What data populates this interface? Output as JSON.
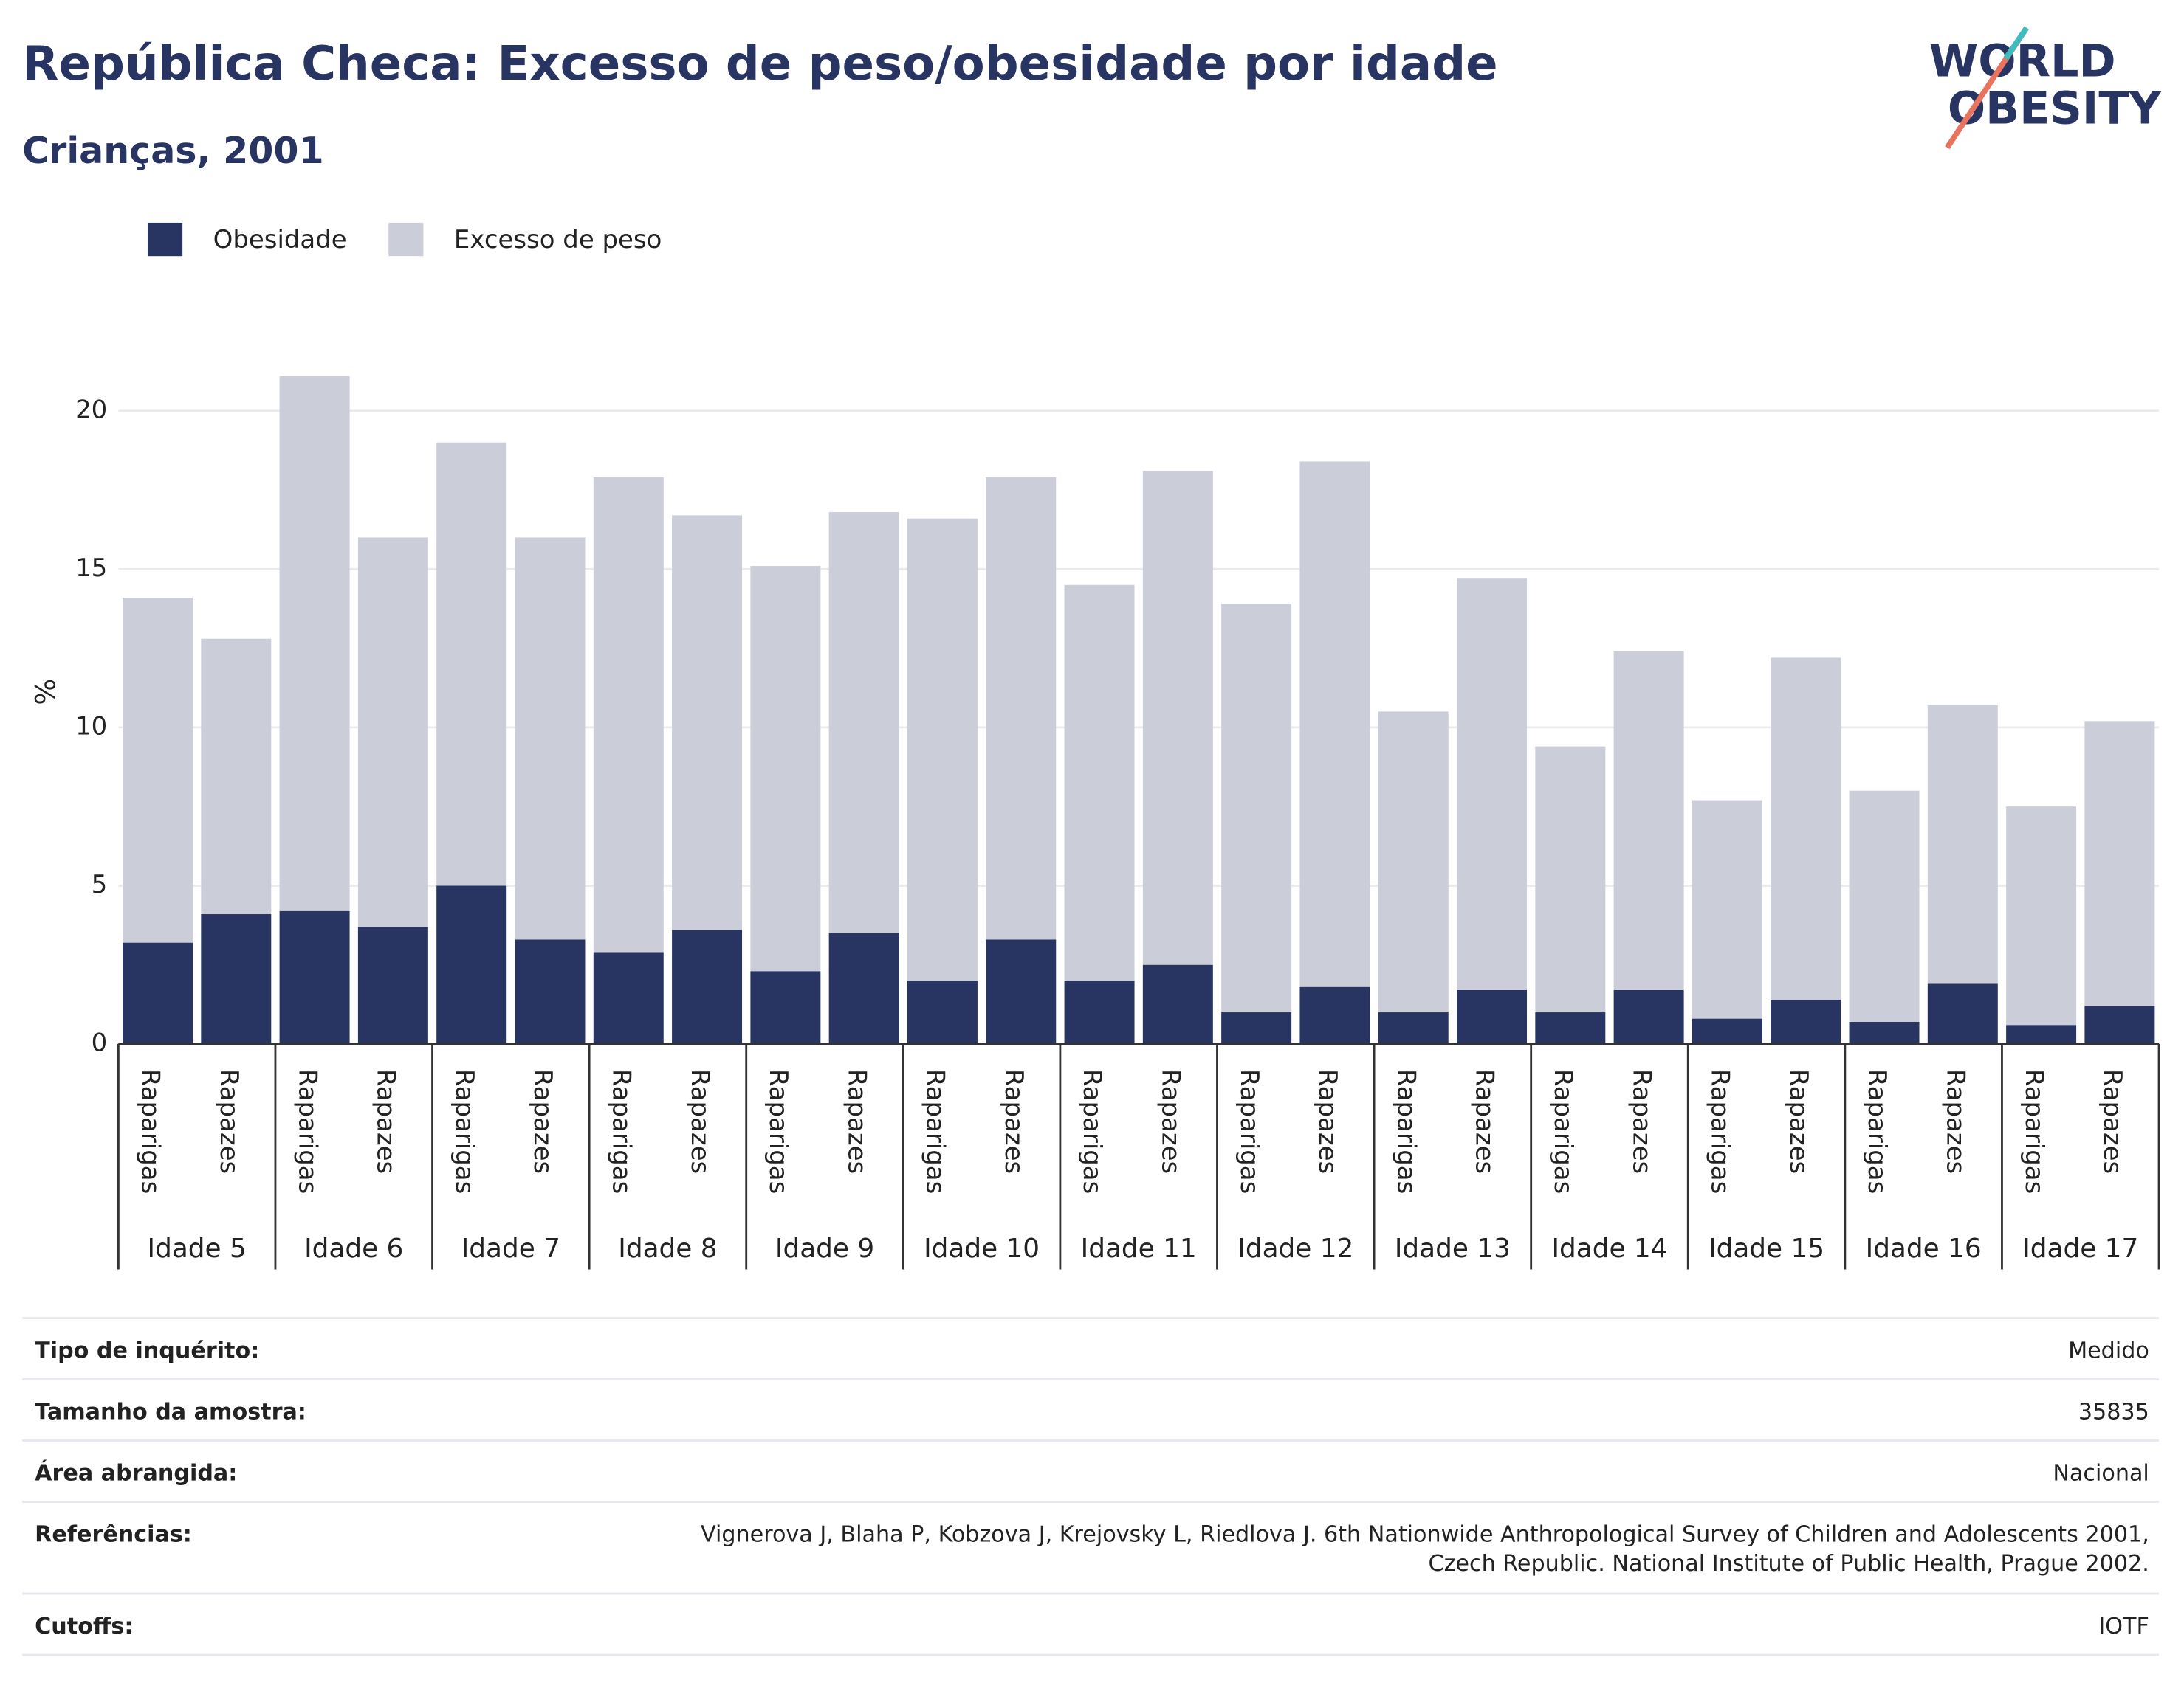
{
  "chart_data": {
    "type": "stacked-bar",
    "title": "República Checa: Excesso de peso/obesidade por idade",
    "subtitle": "Crianças, 2001",
    "logo": [
      "WORLD",
      "OBESITY"
    ],
    "ylabel": "%",
    "categories": [
      "Raparigas",
      "Rapazes",
      "Raparigas",
      "Rapazes",
      "Raparigas",
      "Rapazes",
      "Raparigas",
      "Rapazes",
      "Raparigas",
      "Rapazes",
      "Raparigas",
      "Rapazes",
      "Raparigas",
      "Rapazes",
      "Raparigas",
      "Rapazes",
      "Raparigas",
      "Rapazes",
      "Raparigas",
      "Rapazes",
      "Raparigas",
      "Rapazes",
      "Raparigas",
      "Rapazes",
      "Raparigas",
      "Rapazes"
    ],
    "groups": [
      "Idade 5",
      "Idade 6",
      "Idade 7",
      "Idade 8",
      "Idade 9",
      "Idade 10",
      "Idade 11",
      "Idade 12",
      "Idade 13",
      "Idade 14",
      "Idade 15",
      "Idade 16",
      "Idade 17"
    ],
    "series": [
      {
        "name": "Obesidade",
        "color": "#283462",
        "values": [
          3.2,
          4.1,
          4.2,
          3.7,
          5.0,
          3.3,
          2.9,
          3.6,
          2.3,
          3.5,
          2.0,
          3.3,
          2.0,
          2.5,
          1.0,
          1.8,
          1.0,
          1.7,
          1.0,
          1.7,
          0.8,
          1.4,
          0.7,
          1.9,
          0.6,
          1.2
        ]
      },
      {
        "name": "Excesso de peso",
        "color": "#cbcdd9",
        "values": [
          10.9,
          8.7,
          16.9,
          12.3,
          14.0,
          12.7,
          15.0,
          13.1,
          12.8,
          13.3,
          14.6,
          14.6,
          12.5,
          15.6,
          12.9,
          16.6,
          9.5,
          13.0,
          8.4,
          10.7,
          6.9,
          10.8,
          7.3,
          8.8,
          6.9,
          9.0
        ]
      }
    ],
    "ylim": [
      0,
      21.5
    ],
    "yticks": [
      0,
      5,
      10,
      15,
      20
    ],
    "grid": true,
    "legend": "top-left"
  },
  "info": [
    {
      "label": "Tipo de inquérito:",
      "value": [
        "Medido"
      ]
    },
    {
      "label": "Tamanho da amostra:",
      "value": [
        "35835"
      ]
    },
    {
      "label": "Área abrangida:",
      "value": [
        "Nacional"
      ]
    },
    {
      "label": "Referências:",
      "value": [
        "Vignerova J, Blaha P, Kobzova J, Krejovsky L, Riedlova J. 6th Nationwide Anthropological Survey of Children and Adolescents 2001,",
        "Czech Republic. National Institute of Public Health, Prague 2002."
      ]
    },
    {
      "label": "Cutoffs:",
      "value": [
        "IOTF"
      ]
    }
  ]
}
